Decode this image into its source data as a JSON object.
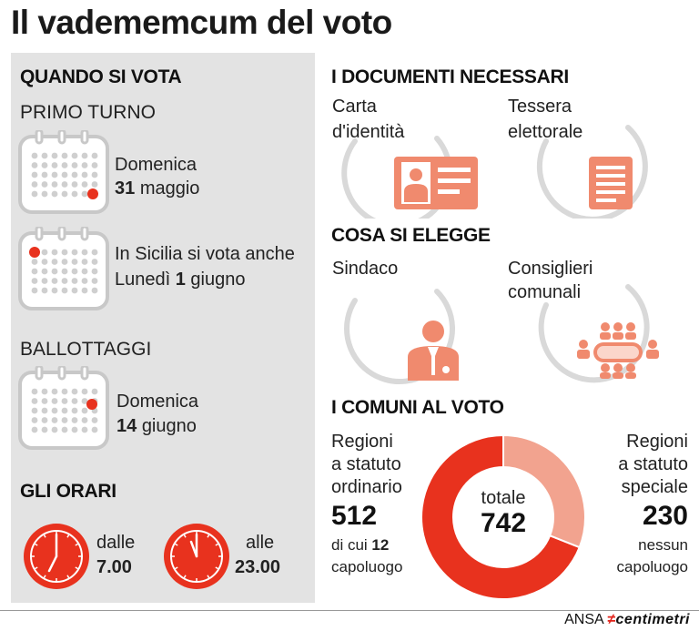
{
  "title": "Il vadememcum del voto",
  "left": {
    "quando": {
      "heading": "QUANDO SI VOTA",
      "primo_turno": "PRIMO TURNO",
      "date1": {
        "line1": "Domenica",
        "day": "31",
        "month": "maggio"
      },
      "date2": {
        "line1": "In Sicilia si vota anche",
        "weekday": "Lunedì",
        "day": "1",
        "month": "giugno"
      },
      "ballottaggi": "BALLOTTAGGI",
      "date3": {
        "line1": "Domenica",
        "day": "14",
        "month": "giugno"
      }
    },
    "orari": {
      "heading": "GLI ORARI",
      "from_label": "dalle",
      "from_time": "7.00",
      "to_label": "alle",
      "to_time": "23.00"
    }
  },
  "right": {
    "documenti": {
      "heading": "I DOCUMENTI NECESSARI",
      "doc1": [
        "Carta",
        "d'identità"
      ],
      "doc2": [
        "Tessera",
        "elettorale"
      ]
    },
    "elegge": {
      "heading": "COSA SI ELEGGE",
      "item1": [
        "Sindaco"
      ],
      "item2": [
        "Consiglieri",
        "comunali"
      ]
    },
    "comuni": {
      "heading": "I COMUNI AL VOTO",
      "ordinario_label": [
        "Regioni",
        "a statuto",
        "ordinario"
      ],
      "ordinario_value": "512",
      "ordinario_note_prefix": "di cui",
      "ordinario_note_num": "12",
      "ordinario_note_suffix": "capoluogo",
      "speciale_label": [
        "Regioni",
        "a statuto",
        "speciale"
      ],
      "speciale_value": "230",
      "speciale_note": [
        "nessun",
        "capoluogo"
      ],
      "totale_label": "totale",
      "totale_value": "742"
    }
  },
  "chart_data": {
    "type": "pie",
    "categories": [
      "Regioni a statuto ordinario",
      "Regioni a statuto speciale"
    ],
    "values": [
      512,
      230
    ],
    "total": 742,
    "colors": [
      "#e8321e",
      "#f2a38f"
    ]
  },
  "colors": {
    "accent": "#e8321e",
    "accent_light": "#f2a38f",
    "panel": "#e3e3e3",
    "arc": "#d9d9d9"
  },
  "footer": {
    "brand": "ANSA",
    "sub_a": "≠",
    "sub_b": "centimetri"
  }
}
